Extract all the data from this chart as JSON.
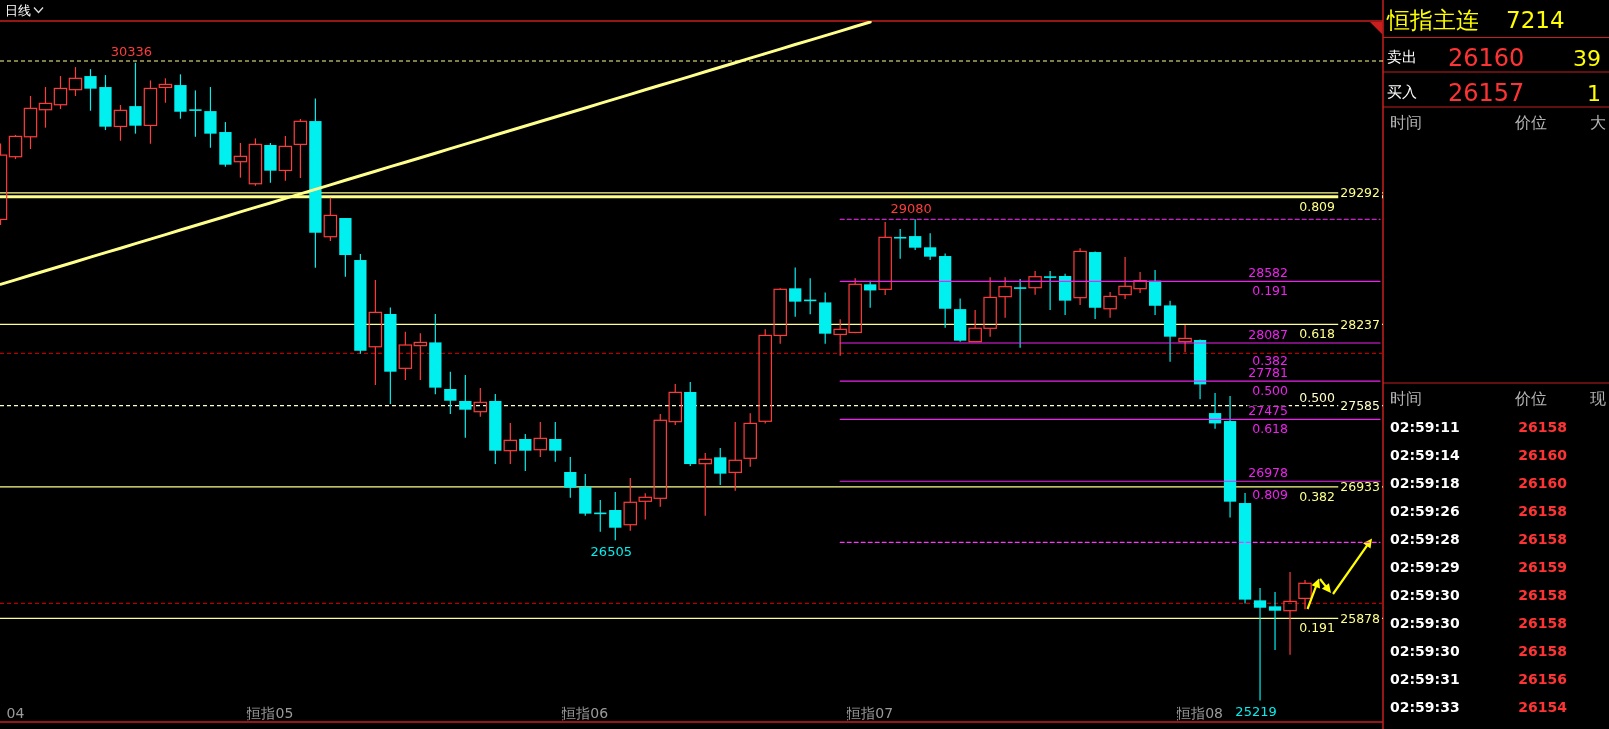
{
  "chart_data": [
    {
      "type": "candlestick",
      "title": "日线",
      "categories": [
        null,
        "04",
        null,
        null,
        null,
        null,
        null,
        null,
        null,
        null,
        null,
        null,
        null,
        null,
        null,
        null,
        null,
        null,
        "恒指05",
        null,
        null,
        null,
        null,
        null,
        null,
        null,
        null,
        null,
        null,
        null,
        null,
        null,
        null,
        null,
        null,
        null,
        null,
        null,
        null,
        "恒指06",
        null,
        null,
        null,
        null,
        null,
        null,
        null,
        null,
        null,
        null,
        null,
        null,
        null,
        null,
        null,
        null,
        null,
        null,
        "恒指07",
        null,
        null,
        null,
        null,
        null,
        null,
        null,
        null,
        null,
        null,
        null,
        null,
        null,
        null,
        null,
        null,
        null,
        null,
        null,
        null,
        null,
        "恒指08",
        null,
        null,
        null,
        null,
        null,
        null,
        null,
        null,
        null,
        null,
        null,
        null
      ],
      "ylim": [
        25046,
        30671
      ],
      "yticks": [
        29292,
        28237,
        27585,
        26933,
        25878
      ],
      "ohlc": [
        [
          29079,
          29689,
          29034,
          29595
        ],
        [
          29582,
          29756,
          29563,
          29745
        ],
        [
          29742,
          30069,
          29644,
          29970
        ],
        [
          29959,
          30141,
          29815,
          30010
        ],
        [
          29999,
          30229,
          29965,
          30130
        ],
        [
          30120,
          30301,
          30069,
          30211
        ],
        [
          30229,
          30285,
          29951,
          30128
        ],
        [
          30141,
          30237,
          29796,
          29823
        ],
        [
          29825,
          29997,
          29710,
          29954
        ],
        [
          29988,
          30336,
          29767,
          29831
        ],
        [
          29833,
          30194,
          29686,
          30130
        ],
        [
          30138,
          30211,
          30015,
          30162
        ],
        [
          30157,
          30243,
          29887,
          29943
        ],
        [
          29958,
          30114,
          29742,
          29954
        ],
        [
          29948,
          30141,
          29654,
          29767
        ],
        [
          29780,
          29860,
          29502,
          29518
        ],
        [
          29542,
          29692,
          29414,
          29585
        ],
        [
          29365,
          29729,
          29349,
          29681
        ],
        [
          29676,
          29692,
          29373,
          29470
        ],
        [
          29472,
          29748,
          29389,
          29665
        ],
        [
          29681,
          29884,
          29411,
          29866
        ],
        [
          29868,
          30050,
          28691,
          28972
        ],
        [
          28940,
          29253,
          28905,
          29111
        ],
        [
          29090,
          29090,
          28619,
          28793
        ],
        [
          28753,
          28801,
          28001,
          28025
        ],
        [
          28057,
          28592,
          27750,
          28333
        ],
        [
          28320,
          28373,
          27598,
          27857
        ],
        [
          27884,
          28178,
          27790,
          28071
        ],
        [
          28066,
          28165,
          27790,
          28092
        ],
        [
          28092,
          28320,
          27675,
          27729
        ],
        [
          27718,
          27856,
          27517,
          27624
        ],
        [
          27622,
          27830,
          27327,
          27552
        ],
        [
          27536,
          27726,
          27496,
          27611
        ],
        [
          27622,
          27678,
          27116,
          27223
        ],
        [
          27223,
          27445,
          27116,
          27306
        ],
        [
          27317,
          27357,
          27060,
          27223
        ],
        [
          27231,
          27453,
          27172,
          27322
        ],
        [
          27317,
          27453,
          27135,
          27223
        ],
        [
          27052,
          27172,
          26846,
          26926
        ],
        [
          26934,
          27036,
          26702,
          26718
        ],
        [
          26722,
          26827,
          26573,
          26718
        ],
        [
          26747,
          26892,
          26505,
          26605
        ],
        [
          26629,
          27004,
          26581,
          26809
        ],
        [
          26817,
          26881,
          26670,
          26849
        ],
        [
          26841,
          27517,
          26774,
          27467
        ],
        [
          27456,
          27758,
          27429,
          27691
        ],
        [
          27694,
          27774,
          27100,
          27116
        ],
        [
          27119,
          27204,
          26702,
          27154
        ],
        [
          27170,
          27245,
          26948,
          27039
        ],
        [
          27049,
          27453,
          26902,
          27146
        ],
        [
          27162,
          27523,
          27095,
          27442
        ],
        [
          27459,
          28197,
          27442,
          28148
        ],
        [
          28148,
          28526,
          28082,
          28518
        ],
        [
          28526,
          28694,
          28298,
          28419
        ],
        [
          28431,
          28606,
          28317,
          28427
        ],
        [
          28413,
          28493,
          28082,
          28162
        ],
        [
          28156,
          28277,
          27985,
          28197
        ],
        [
          28172,
          28606,
          28165,
          28558
        ],
        [
          28558,
          28587,
          28370,
          28509
        ],
        [
          28518,
          29058,
          28472,
          28935
        ],
        [
          28934,
          29002,
          28764,
          28930
        ],
        [
          28945,
          29080,
          28833,
          28852
        ],
        [
          28855,
          28967,
          28753,
          28780
        ],
        [
          28785,
          28806,
          28210,
          28362
        ],
        [
          28359,
          28445,
          28098,
          28106
        ],
        [
          28098,
          28352,
          28095,
          28205
        ],
        [
          28205,
          28614,
          28138,
          28453
        ],
        [
          28459,
          28614,
          28290,
          28539
        ],
        [
          28530,
          28600,
          28049,
          28526
        ],
        [
          28531,
          28665,
          28475,
          28619
        ],
        [
          28618,
          28665,
          28352,
          28614
        ],
        [
          28625,
          28643,
          28312,
          28427
        ],
        [
          28451,
          28847,
          28392,
          28822
        ],
        [
          28817,
          28822,
          28280,
          28370
        ],
        [
          28362,
          28496,
          28290,
          28461
        ],
        [
          28475,
          28777,
          28440,
          28542
        ],
        [
          28523,
          28657,
          28488,
          28587
        ],
        [
          28587,
          28673,
          28312,
          28386
        ],
        [
          28389,
          28427,
          27937,
          28138
        ],
        [
          28098,
          28231,
          28012,
          28124
        ],
        [
          28111,
          28115,
          27635,
          27755
        ],
        [
          27525,
          27686,
          27400,
          27442
        ],
        [
          27461,
          27662,
          26686,
          26814
        ],
        [
          26803,
          26883,
          25996,
          26028
        ],
        [
          26022,
          26121,
          25219,
          25963
        ],
        [
          25974,
          26089,
          25624,
          25939
        ],
        [
          25939,
          26250,
          25586,
          26014
        ],
        [
          26038,
          26185,
          25950,
          26159
        ],
        null,
        null,
        null,
        null,
        null
      ],
      "colors": [
        "#ff3c3c",
        "#ff3c3c",
        "#ff3c3c",
        "#ff3c3c",
        "#ff3c3c",
        "#ff3c3c",
        "#00efef",
        "#00efef",
        "#ff3c3c",
        "#00efef",
        "#ff3c3c",
        "#ff3c3c",
        "#00efef",
        "#00efef",
        "#00efef",
        "#00efef",
        "#ff3c3c",
        "#ff3c3c",
        "#00efef",
        "#ff3c3c",
        "#ff3c3c",
        "#00efef",
        "#ff3c3c",
        "#00efef",
        "#00efef",
        "#ff3c3c",
        "#00efef",
        "#ff3c3c",
        "#ff3c3c",
        "#00efef",
        "#00efef",
        "#00efef",
        "#ff3c3c",
        "#00efef",
        "#ff3c3c",
        "#00efef",
        "#ff3c3c",
        "#00efef",
        "#00efef",
        "#00efef",
        "#00efef",
        "#00efef",
        "#ff3c3c",
        "#ff3c3c",
        "#ff3c3c",
        "#ff3c3c",
        "#00efef",
        "#ff3c3c",
        "#00efef",
        "#ff3c3c",
        "#ff3c3c",
        "#ff3c3c",
        "#ff3c3c",
        "#00efef",
        "#00efef",
        "#00efef",
        "#ff3c3c",
        "#ff3c3c",
        "#00efef",
        "#ff3c3c",
        "#00efef",
        "#00efef",
        "#00efef",
        "#00efef",
        "#00efef",
        "#ff3c3c",
        "#ff3c3c",
        "#ff3c3c",
        "#00efef",
        "#ff3c3c",
        "#00efef",
        "#00efef",
        "#ff3c3c",
        "#00efef",
        "#ff3c3c",
        "#ff3c3c",
        "#ff3c3c",
        "#00efef",
        "#00efef",
        "#ff3c3c",
        "#00efef",
        "#00efef",
        "#00efef",
        "#00efef",
        "#00efef",
        "#00efef",
        "#ff3c3c",
        "#ff3c3c",
        null,
        null,
        null,
        null,
        null
      ],
      "series": [
        {
          "type": "line",
          "color": "#ffff8c",
          "values": [
            28558,
            28594,
            28631,
            28667,
            28703,
            28739,
            28776,
            28812,
            28848,
            28885,
            28921,
            28957,
            28994,
            29030,
            29066,
            29102,
            29139,
            29175,
            29211,
            29248,
            29284,
            29320,
            29356,
            29393,
            29429,
            29465,
            29502,
            29538,
            29574,
            29610,
            29647,
            29683,
            29719,
            29756,
            29792,
            29828,
            29865,
            29901,
            29937,
            29973,
            30010,
            30046,
            30082,
            30119,
            30155,
            30191,
            30227,
            30264,
            30300,
            30336,
            30373,
            30409,
            30445,
            30482,
            30518,
            30554,
            30590,
            30627,
            30663,
            null,
            null,
            null,
            null,
            null,
            null,
            null,
            null,
            null,
            null,
            null,
            null,
            null,
            null,
            null,
            null,
            null,
            null,
            null,
            null,
            null,
            null,
            null,
            null,
            null,
            null,
            null,
            null,
            null,
            null,
            null,
            null,
            null,
            null
          ]
        },
        {
          "type": "line",
          "color": "#ff33ff",
          "line_style": "dashed",
          "values": [
            null,
            null,
            null,
            null,
            null,
            null,
            null,
            null,
            null,
            null,
            null,
            null,
            null,
            null,
            null,
            null,
            null,
            null,
            null,
            null,
            null,
            null,
            null,
            null,
            null,
            null,
            null,
            null,
            null,
            null,
            null,
            null,
            null,
            null,
            null,
            null,
            null,
            null,
            null,
            null,
            null,
            null,
            null,
            null,
            null,
            null,
            null,
            null,
            null,
            null,
            null,
            null,
            null,
            null,
            null,
            null,
            29080,
            29080,
            29080,
            29080,
            29080,
            29080,
            29080,
            29080,
            29080,
            29080,
            29080,
            29080,
            29080,
            29080,
            29080,
            29080,
            29080,
            29080,
            29080,
            29080,
            29080,
            29080,
            29080,
            29080,
            29080,
            29080,
            29080,
            29080,
            29080,
            29080,
            29080,
            29080,
            29080,
            29080,
            29080,
            29080,
            29080
          ]
        },
        {
          "type": "line",
          "name": "28582",
          "color": "#ee22ee",
          "values": [
            null,
            null,
            null,
            null,
            null,
            null,
            null,
            null,
            null,
            null,
            null,
            null,
            null,
            null,
            null,
            null,
            null,
            null,
            null,
            null,
            null,
            null,
            null,
            null,
            null,
            null,
            null,
            null,
            null,
            null,
            null,
            null,
            null,
            null,
            null,
            null,
            null,
            null,
            null,
            null,
            null,
            null,
            null,
            null,
            null,
            null,
            null,
            null,
            null,
            null,
            null,
            null,
            null,
            null,
            null,
            null,
            28582,
            28582,
            28582,
            28582,
            28582,
            28582,
            28582,
            28582,
            28582,
            28582,
            28582,
            28582,
            28582,
            28582,
            28582,
            28582,
            28582,
            28582,
            28582,
            28582,
            28582,
            28582,
            28582,
            28582,
            28582,
            28582,
            28582,
            28582,
            28582,
            28582,
            28582,
            28582,
            28582,
            28582,
            28582,
            28582,
            28582
          ]
        },
        {
          "type": "line",
          "name": "28087",
          "color": "#ee22ee",
          "values": [
            null,
            null,
            null,
            null,
            null,
            null,
            null,
            null,
            null,
            null,
            null,
            null,
            null,
            null,
            null,
            null,
            null,
            null,
            null,
            null,
            null,
            null,
            null,
            null,
            null,
            null,
            null,
            null,
            null,
            null,
            null,
            null,
            null,
            null,
            null,
            null,
            null,
            null,
            null,
            null,
            null,
            null,
            null,
            null,
            null,
            null,
            null,
            null,
            null,
            null,
            null,
            null,
            null,
            null,
            null,
            null,
            28087,
            28087,
            28087,
            28087,
            28087,
            28087,
            28087,
            28087,
            28087,
            28087,
            28087,
            28087,
            28087,
            28087,
            28087,
            28087,
            28087,
            28087,
            28087,
            28087,
            28087,
            28087,
            28087,
            28087,
            28087,
            28087,
            28087,
            28087,
            28087,
            28087,
            28087,
            28087,
            28087,
            28087,
            28087,
            28087,
            28087
          ]
        },
        {
          "type": "line",
          "name": "27781",
          "color": "#ee22ee",
          "values": [
            null,
            null,
            null,
            null,
            null,
            null,
            null,
            null,
            null,
            null,
            null,
            null,
            null,
            null,
            null,
            null,
            null,
            null,
            null,
            null,
            null,
            null,
            null,
            null,
            null,
            null,
            null,
            null,
            null,
            null,
            null,
            null,
            null,
            null,
            null,
            null,
            null,
            null,
            null,
            null,
            null,
            null,
            null,
            null,
            null,
            null,
            null,
            null,
            null,
            null,
            null,
            null,
            null,
            null,
            null,
            null,
            27781,
            27781,
            27781,
            27781,
            27781,
            27781,
            27781,
            27781,
            27781,
            27781,
            27781,
            27781,
            27781,
            27781,
            27781,
            27781,
            27781,
            27781,
            27781,
            27781,
            27781,
            27781,
            27781,
            27781,
            27781,
            27781,
            27781,
            27781,
            27781,
            27781,
            27781,
            27781,
            27781,
            27781,
            27781,
            27781,
            27781
          ]
        },
        {
          "type": "line",
          "name": "27475",
          "color": "#ee22ee",
          "values": [
            null,
            null,
            null,
            null,
            null,
            null,
            null,
            null,
            null,
            null,
            null,
            null,
            null,
            null,
            null,
            null,
            null,
            null,
            null,
            null,
            null,
            null,
            null,
            null,
            null,
            null,
            null,
            null,
            null,
            null,
            null,
            null,
            null,
            null,
            null,
            null,
            null,
            null,
            null,
            null,
            null,
            null,
            null,
            null,
            null,
            null,
            null,
            null,
            null,
            null,
            null,
            null,
            null,
            null,
            null,
            null,
            27475,
            27475,
            27475,
            27475,
            27475,
            27475,
            27475,
            27475,
            27475,
            27475,
            27475,
            27475,
            27475,
            27475,
            27475,
            27475,
            27475,
            27475,
            27475,
            27475,
            27475,
            27475,
            27475,
            27475,
            27475,
            27475,
            27475,
            27475,
            27475,
            27475,
            27475,
            27475,
            27475,
            27475,
            27475,
            27475,
            27475
          ]
        },
        {
          "type": "line",
          "name": "26978",
          "color": "#ee22ee",
          "values": [
            null,
            null,
            null,
            null,
            null,
            null,
            null,
            null,
            null,
            null,
            null,
            null,
            null,
            null,
            null,
            null,
            null,
            null,
            null,
            null,
            null,
            null,
            null,
            null,
            null,
            null,
            null,
            null,
            null,
            null,
            null,
            null,
            null,
            null,
            null,
            null,
            null,
            null,
            null,
            null,
            null,
            null,
            null,
            null,
            null,
            null,
            null,
            null,
            null,
            null,
            null,
            null,
            null,
            null,
            null,
            null,
            26978,
            26978,
            26978,
            26978,
            26978,
            26978,
            26978,
            26978,
            26978,
            26978,
            26978,
            26978,
            26978,
            26978,
            26978,
            26978,
            26978,
            26978,
            26978,
            26978,
            26978,
            26978,
            26978,
            26978,
            26978,
            26978,
            26978,
            26978,
            26978,
            26978,
            26978,
            26978,
            26978,
            26978,
            26978,
            26978,
            26978
          ]
        },
        {
          "type": "line",
          "color": "#ff33ff",
          "line_style": "dashed",
          "values": [
            null,
            null,
            null,
            null,
            null,
            null,
            null,
            null,
            null,
            null,
            null,
            null,
            null,
            null,
            null,
            null,
            null,
            null,
            null,
            null,
            null,
            null,
            null,
            null,
            null,
            null,
            null,
            null,
            null,
            null,
            null,
            null,
            null,
            null,
            null,
            null,
            null,
            null,
            null,
            null,
            null,
            null,
            null,
            null,
            null,
            null,
            null,
            null,
            null,
            null,
            null,
            null,
            null,
            null,
            null,
            null,
            26488,
            26488,
            26488,
            26488,
            26488,
            26488,
            26488,
            26488,
            26488,
            26488,
            26488,
            26488,
            26488,
            26488,
            26488,
            26488,
            26488,
            26488,
            26488,
            26488,
            26488,
            26488,
            26488,
            26488,
            26488,
            26488,
            26488,
            26488,
            26488,
            26488,
            26488,
            26488,
            26488,
            26488,
            26488,
            26488,
            26488
          ]
        }
      ],
      "ref_lines": [
        {
          "axis": "y",
          "value": 30350,
          "color": "#ffff8c",
          "line_style": "dashed"
        },
        {
          "axis": "y",
          "value": 29292,
          "color": "#ffff8c"
        },
        {
          "axis": "y",
          "value": 29260,
          "color": "#ffff8c"
        },
        {
          "axis": "y",
          "value": 28237,
          "color": "#ffff8c"
        },
        {
          "axis": "y",
          "value": 28004,
          "color": "#b40000",
          "line_style": "dashed"
        },
        {
          "axis": "y",
          "value": 27585,
          "color": "#ffffc8",
          "line_style": "dashed"
        },
        {
          "axis": "y",
          "value": 26933,
          "color": "#ffff8c"
        },
        {
          "axis": "y",
          "value": 25998,
          "color": "#b40000",
          "line_style": "dashed"
        },
        {
          "axis": "y",
          "value": 25878,
          "color": "#ffff8c"
        }
      ],
      "annotations": [
        {
          "text": "30336",
          "y": 30336
        },
        {
          "text": "29080",
          "y": 29080
        },
        {
          "text": "26505",
          "y": 26505
        },
        {
          "text": "25219",
          "y": 25219
        },
        {
          "text": "0.809",
          "y": 29292
        },
        {
          "text": "0.618",
          "y": 28237
        },
        {
          "text": "0.500",
          "y": 27585
        },
        {
          "text": "0.382",
          "y": 26933
        },
        {
          "text": "0.191",
          "y": 25878
        },
        {
          "text": "0.191",
          "y": 28582
        },
        {
          "text": "0.382",
          "y": 28087
        },
        {
          "text": "0.500",
          "y": 27781
        },
        {
          "text": "0.618",
          "y": 27475
        },
        {
          "text": "0.809",
          "y": 26978
        }
      ]
    },
    {
      "type": "other",
      "title": "恒指主连",
      "subtitle": "7214",
      "annotations": [
        "卖出",
        "26160",
        "39",
        "买入",
        "26157",
        "1",
        "时间",
        "价位",
        "大",
        "时间",
        "价位",
        "现",
        "02:59:11 26158",
        "02:59:14 26160",
        "02:59:18 26160",
        "02:59:26 26158",
        "02:59:28 26158",
        "02:59:29 26159",
        "02:59:30 26158",
        "02:59:30 26158",
        "02:59:30 26158",
        "02:59:31 26156",
        "02:59:33 26154"
      ]
    }
  ]
}
